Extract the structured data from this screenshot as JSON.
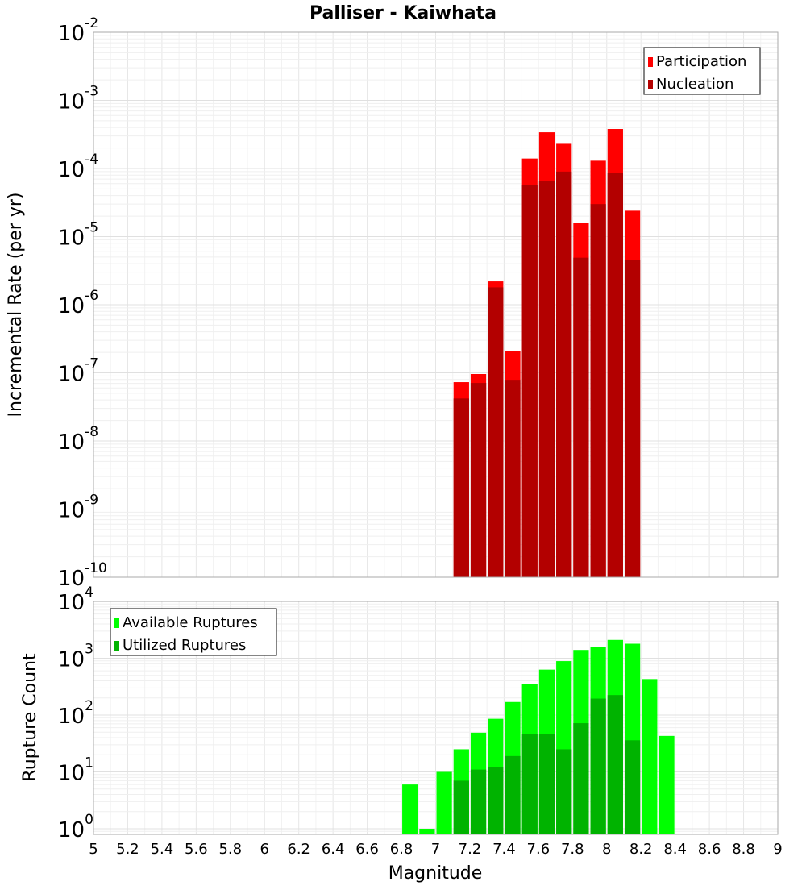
{
  "chart_data": [
    {
      "type": "bar",
      "title": "Palliser - Kaiwhata",
      "xlabel": "Magnitude",
      "ylabel": "Incremental Rate (per yr)",
      "yscale": "log",
      "ylim": [
        1e-10,
        0.01
      ],
      "xlim": [
        5,
        9
      ],
      "bin_width": 0.1,
      "y_tick_exponents": [
        "-10",
        "-9",
        "-8",
        "-7",
        "-6",
        "-5",
        "-4",
        "-3",
        "-2"
      ],
      "legend_position": "top-right",
      "x": [
        7.1,
        7.2,
        7.3,
        7.4,
        7.5,
        7.6,
        7.7,
        7.8,
        7.9,
        8.0,
        8.1
      ],
      "series": [
        {
          "name": "Participation",
          "color": "#ff0000",
          "values": [
            7.3e-08,
            9.6e-08,
            2.2e-06,
            2.1e-07,
            0.00014,
            0.00034,
            0.00023,
            1.6e-05,
            0.00013,
            0.00038,
            2.4e-05
          ]
        },
        {
          "name": "Nucleation",
          "color": "#b30000",
          "values": [
            4.2e-08,
            7.1e-08,
            1.8e-06,
            7.9e-08,
            5.8e-05,
            6.6e-05,
            9e-05,
            4.9e-06,
            3e-05,
            8.5e-05,
            4.5e-06
          ]
        }
      ]
    },
    {
      "type": "bar",
      "xlabel": "Magnitude",
      "ylabel": "Rupture Count",
      "yscale": "log",
      "ylim": [
        0.8,
        10000.0
      ],
      "xlim": [
        5,
        9
      ],
      "bin_width": 0.1,
      "y_tick_exponents": [
        "0",
        "1",
        "2",
        "3",
        "4"
      ],
      "x_ticks": [
        "5",
        "5.2",
        "5.4",
        "5.6",
        "5.8",
        "6",
        "6.2",
        "6.4",
        "6.6",
        "6.8",
        "7",
        "7.2",
        "7.4",
        "7.6",
        "7.8",
        "8",
        "8.2",
        "8.4",
        "8.6",
        "8.8",
        "9"
      ],
      "legend_position": "top-left",
      "x": [
        6.8,
        6.9,
        7.0,
        7.1,
        7.2,
        7.3,
        7.4,
        7.5,
        7.6,
        7.7,
        7.8,
        7.9,
        8.0,
        8.1,
        8.2,
        8.3
      ],
      "series": [
        {
          "name": "Available Ruptures",
          "color": "#00ff00",
          "values": [
            6,
            1,
            10,
            25,
            49,
            86,
            170,
            347,
            630,
            890,
            1400,
            1600,
            2100,
            1800,
            430,
            43
          ]
        },
        {
          "name": "Utilized Ruptures",
          "color": "#00b300",
          "values": [
            0,
            0,
            0,
            7,
            11,
            12,
            19,
            46,
            46,
            25,
            72,
            195,
            225,
            36,
            0,
            0
          ]
        }
      ]
    }
  ]
}
